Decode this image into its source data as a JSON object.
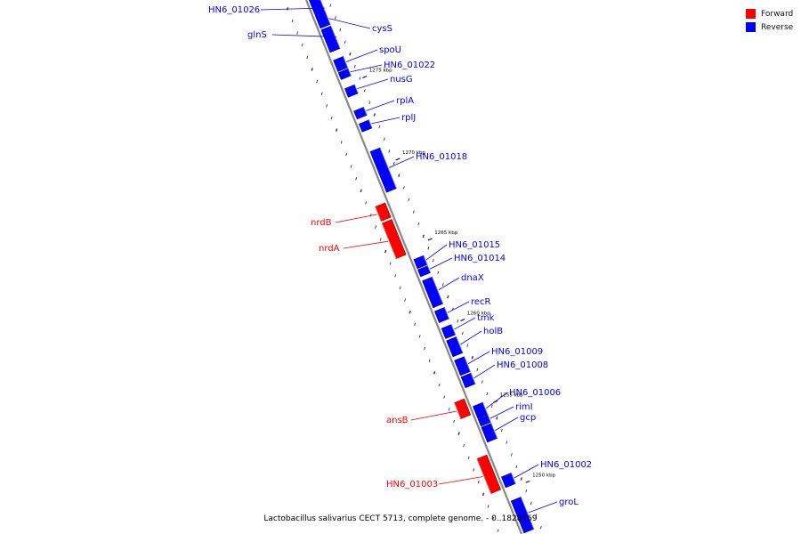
{
  "legend": {
    "forward_label": "Forward",
    "reverse_label": "Reverse",
    "forward_color": "#ff0000",
    "reverse_color": "#0000ff"
  },
  "caption": "Lactobacillus salivarius CECT 5713, complete genome. - 0..1828169",
  "ticks": [
    {
      "label": "1275 kbp",
      "t": 0.162
    },
    {
      "label": "1270 kbp",
      "t": 0.316
    },
    {
      "label": "1265 kbp",
      "t": 0.466
    },
    {
      "label": "1260 kbp",
      "t": 0.617
    },
    {
      "label": "1255 kbp",
      "t": 0.77
    },
    {
      "label": "1250 kbp",
      "t": 0.92
    }
  ],
  "genes": [
    {
      "name": "HN6_01026",
      "strand": "reverse",
      "t0": 0.0,
      "t1": 0.05
    },
    {
      "name": "glnS",
      "strand": "reverse",
      "t0": 0.058,
      "t1": 0.1
    },
    {
      "name": "cysS",
      "strand": "reverse",
      "t0": 0.034,
      "t1": 0.055
    },
    {
      "name": "spoU",
      "strand": "reverse",
      "t0": 0.115,
      "t1": 0.136
    },
    {
      "name": "HN6_01022",
      "strand": "reverse",
      "t0": 0.138,
      "t1": 0.151
    },
    {
      "name": "nusG",
      "strand": "reverse",
      "t0": 0.168,
      "t1": 0.184
    },
    {
      "name": "rplA",
      "strand": "reverse",
      "t0": 0.21,
      "t1": 0.225
    },
    {
      "name": "rplJ",
      "strand": "reverse",
      "t0": 0.234,
      "t1": 0.249
    },
    {
      "name": "HN6_01018",
      "strand": "reverse",
      "t0": 0.286,
      "t1": 0.362
    },
    {
      "name": "nrdB",
      "strand": "forward",
      "t0": 0.378,
      "t1": 0.405
    },
    {
      "name": "nrdA",
      "strand": "forward",
      "t0": 0.409,
      "t1": 0.475
    },
    {
      "name": "HN6_01015",
      "strand": "reverse",
      "t0": 0.488,
      "t1": 0.505
    },
    {
      "name": "HN6_01014",
      "strand": "reverse",
      "t0": 0.507,
      "t1": 0.52
    },
    {
      "name": "dnaX",
      "strand": "reverse",
      "t0": 0.528,
      "t1": 0.578
    },
    {
      "name": "recR",
      "strand": "reverse",
      "t0": 0.585,
      "t1": 0.606
    },
    {
      "name": "tmk",
      "strand": "reverse",
      "t0": 0.617,
      "t1": 0.636
    },
    {
      "name": "holB",
      "strand": "reverse",
      "t0": 0.64,
      "t1": 0.67
    },
    {
      "name": "HN6_01009",
      "strand": "reverse",
      "t0": 0.677,
      "t1": 0.705
    },
    {
      "name": "HN6_01008",
      "strand": "reverse",
      "t0": 0.708,
      "t1": 0.728
    },
    {
      "name": "ansB",
      "strand": "forward",
      "t0": 0.745,
      "t1": 0.775
    },
    {
      "name": "HN6_01006",
      "strand": "reverse",
      "t0": 0.763,
      "t1": 0.786
    },
    {
      "name": "rimI",
      "strand": "reverse",
      "t0": 0.787,
      "t1": 0.8
    },
    {
      "name": "gcp",
      "strand": "reverse",
      "t0": 0.802,
      "t1": 0.83
    },
    {
      "name": "HN6_01003",
      "strand": "forward",
      "t0": 0.85,
      "t1": 0.915
    },
    {
      "name": "HN6_01002",
      "strand": "reverse",
      "t0": 0.895,
      "t1": 0.915
    },
    {
      "name": "groL",
      "strand": "reverse",
      "t0": 0.94,
      "t1": 1.0
    }
  ]
}
